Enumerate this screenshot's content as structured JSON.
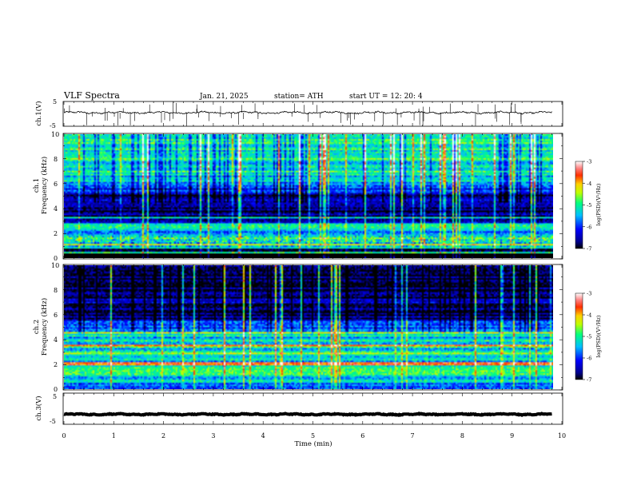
{
  "header": {
    "title": "VLF  Spectra",
    "date": "Jan. 21, 2025",
    "station": "station= ATH",
    "start": "start  UT  =    12: 20: 4"
  },
  "chart_data": [
    {
      "id": "ch1-voltage",
      "type": "line",
      "ylabel": "ch.1(V)",
      "yticks": [
        5,
        -5
      ],
      "ylim": [
        -5,
        5
      ],
      "xlim": [
        0,
        10
      ],
      "xlabel": "Time  (min)",
      "series": [
        {
          "x_range": [
            0,
            9.8
          ],
          "baseline": 0.5,
          "noise": 0.6,
          "spikes": "frequent short negative/positive spikes"
        }
      ]
    },
    {
      "id": "ch1-spectrogram",
      "type": "heatmap",
      "ylabel": "ch.1\nFrequency  (kHz)",
      "yticks": [
        0,
        2,
        4,
        6,
        8,
        10
      ],
      "ylim": [
        0,
        10
      ],
      "xlim": [
        0,
        10
      ],
      "x_extent": 9.8,
      "colorbar": {
        "label": "log(PSD)(V²/Hz)",
        "ticks": [
          -3,
          -4,
          -5,
          -6,
          -7
        ],
        "range": [
          -7,
          -3
        ]
      },
      "features": [
        {
          "freq_khz": [
            0,
            0.8
          ],
          "level": -7
        },
        {
          "freq_khz": 1.0,
          "level": -4
        },
        {
          "freq_khz": 2.2,
          "level": -5
        },
        {
          "freq_khz": [
            3.0,
            5.0
          ],
          "level": -6.8
        },
        {
          "freq_khz": [
            5.0,
            10.0
          ],
          "level": -5
        }
      ]
    },
    {
      "id": "ch2-spectrogram",
      "type": "heatmap",
      "ylabel": "ch.2\nFrequency  (kHz)",
      "yticks": [
        0,
        2,
        4,
        6,
        8,
        10
      ],
      "ylim": [
        0,
        10
      ],
      "xlim": [
        0,
        10
      ],
      "x_extent": 9.8,
      "colorbar": {
        "label": "log(PSD)(V²/Hz)",
        "ticks": [
          -3,
          -4,
          -5,
          -6,
          -7
        ],
        "range": [
          -7,
          -3
        ]
      },
      "features": [
        {
          "freq_khz": 2.0,
          "level": -3.8
        },
        {
          "freq_khz": 3.5,
          "level": -4.2
        },
        {
          "freq_khz": 4.5,
          "level": -4.3
        },
        {
          "freq_khz": [
            0,
            4.5
          ],
          "level": -5.2
        },
        {
          "freq_khz": [
            5.0,
            10.0
          ],
          "level": -6.7
        }
      ]
    },
    {
      "id": "ch3-voltage",
      "type": "line",
      "ylabel": "ch.3(V)",
      "yticks": [
        5,
        -5
      ],
      "ylim": [
        -5,
        5
      ],
      "xlim": [
        0,
        10
      ],
      "series": [
        {
          "x_range": [
            0,
            9.8
          ],
          "baseline": -1.8,
          "noise": 0.25
        }
      ]
    }
  ],
  "x_axis": {
    "label": "Time  (min)",
    "ticks": [
      "0",
      "1",
      "2",
      "3",
      "4",
      "5",
      "6",
      "7",
      "8",
      "9",
      "10"
    ]
  }
}
